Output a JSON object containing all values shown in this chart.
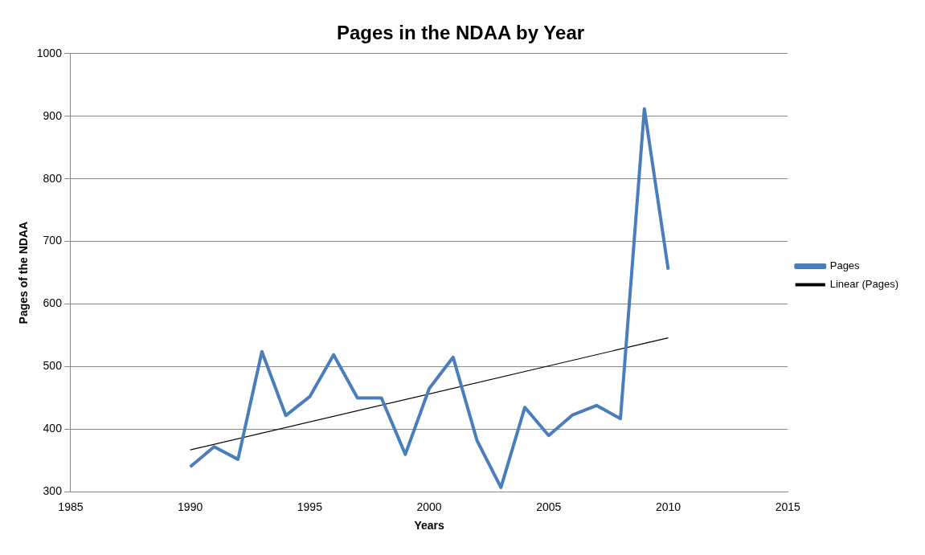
{
  "chart_data": {
    "type": "line",
    "title": "Pages in the NDAA by Year",
    "xlabel": "Years",
    "ylabel": "Pages of the NDAA",
    "xlim": [
      1985,
      2015
    ],
    "xticks": [
      1985,
      1990,
      1995,
      2000,
      2005,
      2010,
      2015
    ],
    "ylim": [
      300,
      1000
    ],
    "yticks": [
      300,
      400,
      500,
      600,
      700,
      800,
      900,
      1000
    ],
    "grid": "y",
    "legend": "right",
    "marker": "none",
    "series": [
      {
        "name": "Pages",
        "color": "#4a7ebb",
        "x": [
          1990,
          1991,
          1992,
          1993,
          1994,
          1995,
          1996,
          1997,
          1998,
          1999,
          2000,
          2001,
          2002,
          2003,
          2004,
          2005,
          2006,
          2007,
          2008,
          2009,
          2010
        ],
        "values": [
          340,
          372,
          352,
          524,
          422,
          452,
          519,
          450,
          450,
          360,
          465,
          515,
          382,
          307,
          435,
          390,
          423,
          438,
          417,
          912,
          655
        ]
      },
      {
        "name": "Linear (Pages)",
        "color": "#000000",
        "x": [
          1990,
          2010
        ],
        "values": [
          367,
          546
        ]
      }
    ]
  }
}
